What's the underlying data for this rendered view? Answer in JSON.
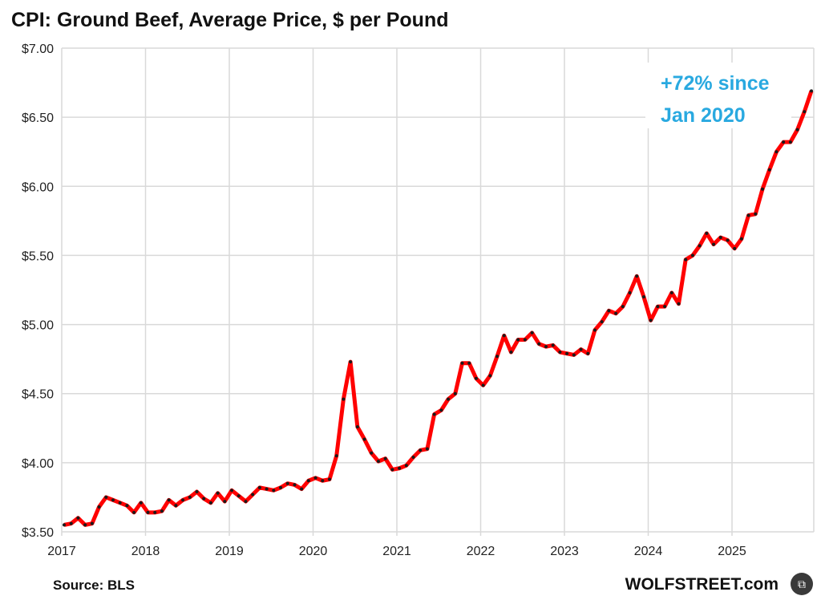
{
  "chart_data": {
    "type": "line",
    "title": "CPI: Ground Beef, Average Price, $ per Pound",
    "xlabel": "",
    "ylabel": "",
    "ylim": [
      3.5,
      7.0
    ],
    "y_ticks": [
      "$7.00",
      "$6.50",
      "$6.00",
      "$5.50",
      "$5.00",
      "$4.50",
      "$4.00",
      "$3.50"
    ],
    "y_tick_values": [
      7.0,
      6.5,
      6.0,
      5.5,
      5.0,
      4.5,
      4.0,
      3.5
    ],
    "x_ticks": [
      "2017",
      "2018",
      "2019",
      "2020",
      "2021",
      "2022",
      "2023",
      "2024",
      "2025"
    ],
    "x_start_year": 2017,
    "frequency": "monthly",
    "grid": true,
    "series": [
      {
        "name": "Ground Beef average price",
        "color": "#ff0000",
        "marker_color": "#1a1a1a",
        "values": [
          3.55,
          3.56,
          3.6,
          3.55,
          3.56,
          3.68,
          3.75,
          3.73,
          3.71,
          3.69,
          3.64,
          3.71,
          3.64,
          3.64,
          3.65,
          3.73,
          3.69,
          3.73,
          3.75,
          3.79,
          3.74,
          3.71,
          3.78,
          3.72,
          3.8,
          3.76,
          3.72,
          3.77,
          3.82,
          3.81,
          3.8,
          3.82,
          3.85,
          3.84,
          3.81,
          3.87,
          3.89,
          3.87,
          3.88,
          4.05,
          4.46,
          4.73,
          4.26,
          4.17,
          4.07,
          4.01,
          4.03,
          3.95,
          3.96,
          3.98,
          4.04,
          4.09,
          4.1,
          4.35,
          4.38,
          4.46,
          4.5,
          4.72,
          4.72,
          4.61,
          4.56,
          4.63,
          4.77,
          4.92,
          4.8,
          4.89,
          4.89,
          4.94,
          4.86,
          4.84,
          4.85,
          4.8,
          4.79,
          4.78,
          4.82,
          4.79,
          4.96,
          5.02,
          5.1,
          5.08,
          5.13,
          5.23,
          5.35,
          5.2,
          5.03,
          5.13,
          5.13,
          5.23,
          5.15,
          5.47,
          5.5,
          5.57,
          5.66,
          5.58,
          5.63,
          5.61,
          5.55,
          5.62,
          5.79,
          5.8,
          5.98,
          6.12,
          6.25,
          6.32,
          6.32,
          6.41,
          6.54,
          6.69
        ]
      }
    ],
    "annotations": [
      "+72% since",
      "Jan 2020"
    ],
    "source": "Source: BLS",
    "brand": "WOLFSTREET.com"
  },
  "overlay_button": {
    "icon": "share-icon",
    "glyph": "⧉"
  }
}
